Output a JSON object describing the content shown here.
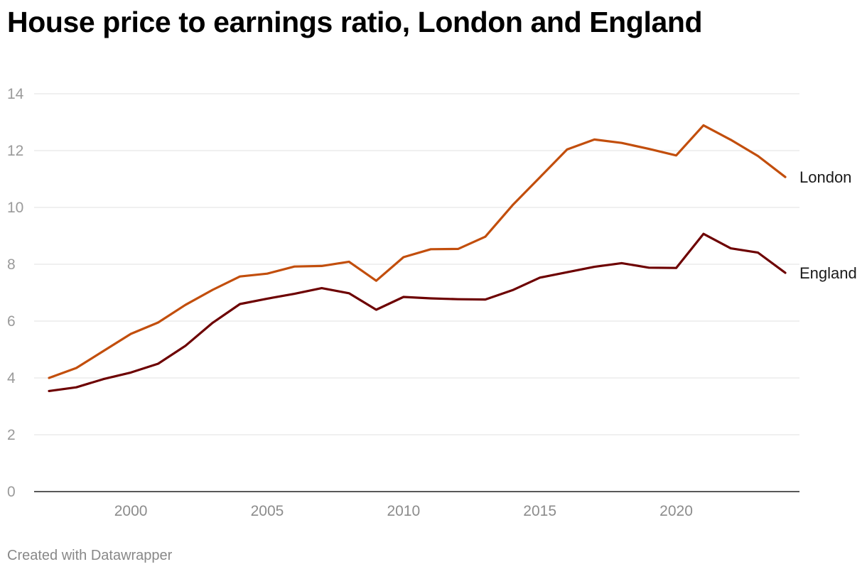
{
  "page": {
    "footer": "Created with Datawrapper"
  },
  "chart_data": {
    "type": "line",
    "title": "House price to earnings ratio, London and England",
    "xlabel": "",
    "ylabel": "",
    "xlim": [
      1997,
      2024
    ],
    "ylim": [
      0,
      14
    ],
    "x_ticks": [
      2000,
      2005,
      2010,
      2015,
      2020
    ],
    "y_ticks": [
      0,
      2,
      4,
      6,
      8,
      10,
      12,
      14
    ],
    "grid": true,
    "legend": "direct labels at line ends",
    "x": [
      1997,
      1998,
      1999,
      2000,
      2001,
      2002,
      2003,
      2004,
      2005,
      2006,
      2007,
      2008,
      2009,
      2010,
      2011,
      2012,
      2013,
      2014,
      2015,
      2016,
      2017,
      2018,
      2019,
      2020,
      2021,
      2022,
      2023,
      2024
    ],
    "series": [
      {
        "name": "London",
        "color": "#c24e0c",
        "values": [
          4.0,
          4.35,
          4.95,
          5.55,
          5.95,
          6.57,
          7.1,
          7.57,
          7.67,
          7.92,
          7.94,
          8.09,
          7.42,
          8.25,
          8.53,
          8.54,
          8.97,
          10.08,
          11.06,
          12.04,
          12.39,
          12.27,
          12.06,
          11.83,
          12.89,
          12.38,
          11.81,
          11.07
        ]
      },
      {
        "name": "England",
        "color": "#6d0000",
        "values": [
          3.54,
          3.67,
          3.96,
          4.19,
          4.5,
          5.13,
          5.94,
          6.6,
          6.79,
          6.96,
          7.16,
          6.98,
          6.4,
          6.85,
          6.8,
          6.77,
          6.76,
          7.09,
          7.53,
          7.72,
          7.91,
          8.04,
          7.88,
          7.87,
          9.07,
          8.56,
          8.41,
          7.7
        ]
      }
    ]
  }
}
